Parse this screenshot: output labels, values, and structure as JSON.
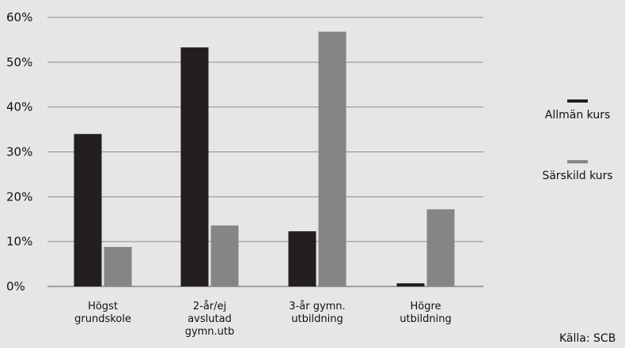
{
  "chart_data": {
    "type": "bar",
    "categories": [
      [
        "Högst",
        "grundskole"
      ],
      [
        "2-år/ej",
        "avslutad",
        "gymn.utb"
      ],
      [
        "3-år gymn.",
        "utbildning"
      ],
      [
        "Högre",
        "utbildning"
      ]
    ],
    "series": [
      {
        "name": "Allmän kurs",
        "color": "#231f20",
        "values": [
          34,
          53.3,
          12.3,
          0.7
        ]
      },
      {
        "name": "Särskild kurs",
        "color": "#858585",
        "values": [
          8.8,
          13.6,
          56.8,
          17.2
        ]
      }
    ],
    "yticks": [
      "0%",
      "10%",
      "20%",
      "30%",
      "40%",
      "50%",
      "60%"
    ],
    "ylim": [
      0,
      60
    ],
    "grid": true,
    "legend_position": "right"
  },
  "source_label": "Källa: SCB"
}
